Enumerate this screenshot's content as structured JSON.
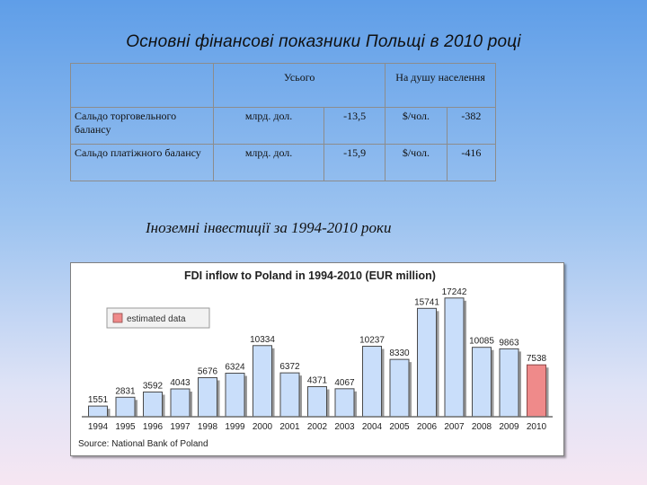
{
  "slide": {
    "title": "Основні фінансові показники Польщі в 2010 році",
    "subtitle": "Іноземні інвестиції за 1994-2010 роки"
  },
  "table": {
    "header": {
      "col1": "Усього",
      "col2": "На душу населення"
    },
    "rows": [
      {
        "label": "Сальдо торговельного балансу",
        "unit1": "млрд. дол.",
        "value1": "-13,5",
        "unit2": "$/чол.",
        "value2": "-382"
      },
      {
        "label": "Сальдо платіжного балансу",
        "unit1": "млрд. дол.",
        "value1": "-15,9",
        "unit2": "$/чол.",
        "value2": "-416"
      }
    ]
  },
  "chart_data": {
    "type": "bar",
    "title": "FDI inflow to Poland in 1994-2010 (EUR million)",
    "categories": [
      "1994",
      "1995",
      "1996",
      "1997",
      "1998",
      "1999",
      "2000",
      "2001",
      "2002",
      "2003",
      "2004",
      "2005",
      "2006",
      "2007",
      "2008",
      "2009",
      "2010"
    ],
    "values": [
      1551,
      2831,
      3592,
      4043,
      5676,
      6324,
      10334,
      6372,
      4371,
      4067,
      10237,
      8330,
      15741,
      17242,
      10085,
      9863,
      7538
    ],
    "estimated": [
      false,
      false,
      false,
      false,
      false,
      false,
      false,
      false,
      false,
      false,
      false,
      false,
      false,
      false,
      false,
      false,
      true
    ],
    "legend": {
      "label": "estimated data",
      "position": "top-left"
    },
    "source": "Source: National Bank of Poland",
    "ylim": [
      0,
      18000
    ],
    "grid": false,
    "colors": {
      "actual": "#c9defa",
      "estimated": "#ef8a8a",
      "axis": "#6b6b6b"
    }
  }
}
